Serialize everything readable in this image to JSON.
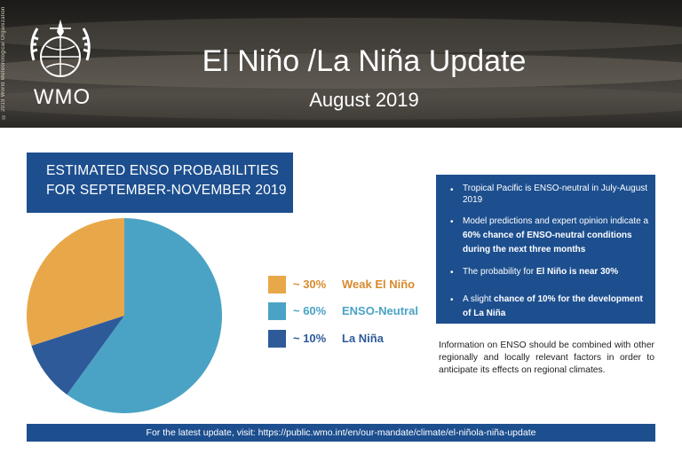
{
  "header": {
    "side_text": "© 2019 World Meteorological Organization",
    "wmo": "WMO",
    "title": "El Niño /La Niña Update",
    "subtitle": "August 2019"
  },
  "banner": {
    "line1": "ESTIMATED ENSO PROBABILITIES",
    "line2": "FOR SEPTEMBER-NOVEMBER 2019"
  },
  "colors": {
    "el_nino": "#e8a84a",
    "neutral": "#4aa3c4",
    "la_nina": "#2e5a9a",
    "brand_blue": "#1d4f8f",
    "el_nino_text": "#d98a2e"
  },
  "chart_data": {
    "type": "pie",
    "title": "ESTIMATED ENSO PROBABILITIES FOR SEPTEMBER-NOVEMBER 2019",
    "slices": [
      {
        "label": "Weak El Niño",
        "value": 30,
        "display": "~ 30%"
      },
      {
        "label": "ENSO-Neutral",
        "value": 60,
        "display": "~ 60%"
      },
      {
        "label": "La Niña",
        "value": 10,
        "display": "~ 10%"
      }
    ],
    "legend_position": "right"
  },
  "info": {
    "bullets": [
      {
        "pre": "Tropical Pacific is ENSO-neutral in July-August 2019",
        "bold": "",
        "post": ""
      },
      {
        "pre": "Model predictions and expert opinion indicate a ",
        "bold": "60% chance of ENSO-neutral conditions during the next three months",
        "post": ""
      },
      {
        "pre": "The probability for ",
        "bold": "El Niño is near 30%",
        "post": ""
      },
      {
        "pre": "A slight ",
        "bold": "chance of 10% for the development of La Niña",
        "post": ""
      }
    ]
  },
  "note": "Information on ENSO should be combined with other regionally and locally relevant factors in order to anticipate its effects on regional climates.",
  "footer": "For the latest update, visit: https://public.wmo.int/en/our-mandate/climate/el-niñola-niña-update"
}
